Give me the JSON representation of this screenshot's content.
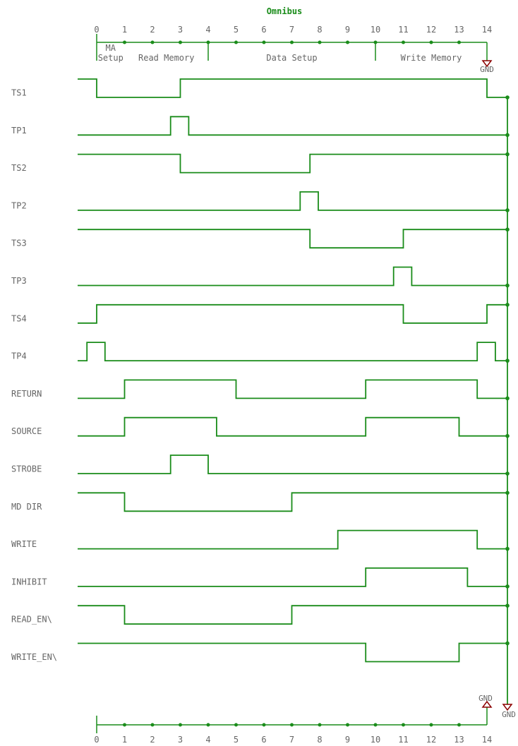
{
  "title": "Omnibus",
  "ticks": [
    "0",
    "1",
    "2",
    "3",
    "4",
    "5",
    "6",
    "7",
    "8",
    "9",
    "10",
    "11",
    "12",
    "13",
    "14"
  ],
  "phases": [
    {
      "label": "MA",
      "label2": "Setup",
      "x": 0.5
    },
    {
      "label": "Read Memory",
      "x": 2.5
    },
    {
      "label": "Data Setup",
      "x": 7
    },
    {
      "label": "Write Memory",
      "x": 12
    }
  ],
  "gnd_label": "GND",
  "colors": {
    "wire": "#1a8c1a",
    "gnd": "#8b0000",
    "text": "#666666",
    "title": "#1a8c1a"
  },
  "chart_data": {
    "type": "timing",
    "title": "Omnibus",
    "time_units": [
      "0",
      "1",
      "2",
      "3",
      "4",
      "5",
      "6",
      "7",
      "8",
      "9",
      "10",
      "11",
      "12",
      "13",
      "14"
    ],
    "signals": [
      {
        "name": "TS1",
        "start": 1,
        "edges": [
          0,
          3,
          14
        ]
      },
      {
        "name": "TP1",
        "start": 0,
        "edges": [
          2.65,
          3.3
        ]
      },
      {
        "name": "TS2",
        "start": 1,
        "edges": [
          3,
          7.65
        ]
      },
      {
        "name": "TP2",
        "start": 0,
        "edges": [
          7.3,
          7.95
        ]
      },
      {
        "name": "TS3",
        "start": 1,
        "edges": [
          7.65,
          11
        ]
      },
      {
        "name": "TP3",
        "start": 0,
        "edges": [
          10.65,
          11.3
        ]
      },
      {
        "name": "TS4",
        "start": 0,
        "edges": [
          0,
          11,
          14
        ]
      },
      {
        "name": "TP4",
        "start": 0,
        "edges": [
          -0.35,
          0.3,
          13.65,
          14.3
        ]
      },
      {
        "name": "RETURN",
        "start": 0,
        "edges": [
          1,
          5,
          9.65,
          13.65
        ]
      },
      {
        "name": "SOURCE",
        "start": 0,
        "edges": [
          1,
          4.3,
          9.65,
          13
        ]
      },
      {
        "name": "STROBE",
        "start": 0,
        "edges": [
          2.65,
          4
        ]
      },
      {
        "name": "MD DIR",
        "start": 1,
        "edges": [
          1,
          7
        ]
      },
      {
        "name": "WRITE",
        "start": 0,
        "edges": [
          8.65,
          13.65
        ]
      },
      {
        "name": "INHIBIT",
        "start": 0,
        "edges": [
          9.65,
          13.3
        ]
      },
      {
        "name": "READ_EN\\",
        "start": 1,
        "edges": [
          1,
          7
        ]
      },
      {
        "name": "WRITE_EN\\",
        "start": 1,
        "edges": [
          9.65,
          13
        ]
      }
    ]
  }
}
